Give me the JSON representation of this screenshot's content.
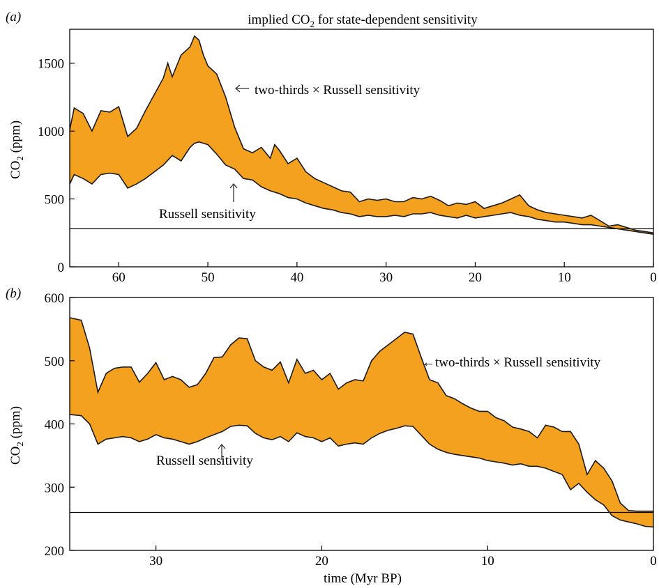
{
  "chart_data": [
    {
      "panel_label": "(a)",
      "type": "area",
      "title": "implied CO2 for state-dependent sensitivity",
      "title_main": "implied CO",
      "title_sub": "2",
      "title_tail": " for state-dependent sensitivity",
      "xlabel": "",
      "ylabel": "CO2 (ppm)",
      "ylabel_main": "CO",
      "ylabel_sub": "2",
      "ylabel_tail": " (ppm)",
      "xlim": [
        65.5,
        0
      ],
      "ylim": [
        0,
        1750
      ],
      "xticks": [
        60,
        50,
        40,
        30,
        20,
        10,
        0
      ],
      "yticks": [
        0,
        500,
        1000,
        1500
      ],
      "reference_line": 280,
      "colors": {
        "band": "#f4a11f",
        "line": "#1a1a1a"
      },
      "annotations": [
        {
          "text": "two-thirds × Russell sensitivity",
          "arrow": "left",
          "points_to": "upper"
        },
        {
          "text": "Russell sensitivity",
          "arrow": "up",
          "points_to": "lower"
        }
      ],
      "series": [
        {
          "name": "two-thirds × Russell sensitivity",
          "x": [
            65.5,
            65,
            64,
            63,
            62,
            61,
            60,
            59,
            58,
            57,
            56,
            55,
            54.5,
            54,
            53,
            52,
            51.5,
            51,
            50.5,
            50,
            49,
            48,
            47,
            46,
            45,
            44,
            43,
            42.5,
            42,
            41,
            40,
            39,
            38,
            37,
            36,
            35,
            34,
            33,
            32,
            31,
            30,
            29,
            28,
            27,
            26,
            25,
            24,
            23,
            22,
            21,
            20,
            19,
            18,
            17,
            16,
            15,
            14,
            13,
            12,
            11,
            10,
            9,
            8,
            7,
            6,
            5,
            4,
            3,
            2,
            1,
            0
          ],
          "values": [
            1010,
            1170,
            1130,
            1000,
            1150,
            1140,
            1180,
            960,
            1020,
            1150,
            1270,
            1390,
            1500,
            1400,
            1560,
            1620,
            1700,
            1670,
            1560,
            1480,
            1420,
            1250,
            1030,
            870,
            840,
            880,
            800,
            900,
            860,
            760,
            800,
            700,
            650,
            620,
            590,
            560,
            550,
            480,
            500,
            490,
            500,
            480,
            480,
            510,
            500,
            520,
            490,
            450,
            470,
            460,
            480,
            430,
            450,
            470,
            500,
            530,
            450,
            420,
            400,
            390,
            380,
            370,
            360,
            380,
            340,
            300,
            310,
            290,
            270,
            260,
            250
          ]
        },
        {
          "name": "Russell sensitivity",
          "x": [
            65.5,
            65,
            64,
            63,
            62,
            61,
            60,
            59,
            58,
            57,
            56,
            55,
            54,
            53,
            52,
            51.5,
            51,
            50,
            49,
            48,
            47,
            46,
            45,
            44,
            43,
            42,
            41,
            40,
            39,
            38,
            37,
            36,
            35,
            34,
            33,
            32,
            31,
            30,
            29,
            28,
            27,
            26,
            25,
            24,
            23,
            22,
            21,
            20,
            19,
            18,
            17,
            16,
            15,
            14,
            13,
            12,
            11,
            10,
            9,
            8,
            7,
            6,
            5,
            4,
            3,
            2,
            1,
            0
          ],
          "values": [
            610,
            680,
            650,
            610,
            680,
            690,
            680,
            580,
            610,
            650,
            700,
            750,
            820,
            780,
            880,
            910,
            920,
            900,
            830,
            750,
            720,
            650,
            640,
            590,
            560,
            540,
            510,
            500,
            470,
            450,
            430,
            420,
            400,
            390,
            370,
            380,
            370,
            370,
            380,
            370,
            390,
            390,
            400,
            380,
            370,
            360,
            380,
            360,
            370,
            380,
            390,
            400,
            380,
            370,
            350,
            340,
            330,
            330,
            320,
            310,
            310,
            300,
            290,
            280,
            270,
            260,
            250,
            240
          ]
        }
      ]
    },
    {
      "panel_label": "(b)",
      "type": "area",
      "title": "",
      "xlabel": "time (Myr BP)",
      "ylabel": "CO2 (ppm)",
      "ylabel_main": "CO",
      "ylabel_sub": "2",
      "ylabel_tail": " (ppm)",
      "xlim": [
        35.2,
        0
      ],
      "ylim": [
        200,
        600
      ],
      "xticks": [
        30,
        20,
        10,
        0
      ],
      "yticks": [
        200,
        300,
        400,
        500,
        600
      ],
      "reference_line": 260,
      "colors": {
        "band": "#f4a11f",
        "line": "#1a1a1a"
      },
      "annotations": [
        {
          "text": "two-thirds × Russell sensitivity",
          "arrow": "left",
          "points_to": "upper"
        },
        {
          "text": "Russell sensitivity",
          "arrow": "up",
          "points_to": "lower"
        }
      ],
      "series": [
        {
          "name": "two-thirds × Russell sensitivity",
          "x": [
            35.2,
            34.5,
            34,
            33.5,
            33,
            32.5,
            32,
            31.5,
            31,
            30.5,
            30,
            29.5,
            29,
            28.5,
            28,
            27.5,
            27,
            26.5,
            26,
            25.5,
            25,
            24.5,
            24,
            23.5,
            23,
            22.5,
            22,
            21.5,
            21,
            20.5,
            20,
            19.5,
            19,
            18.5,
            18,
            17.5,
            17,
            16.5,
            16,
            15.5,
            15,
            14.5,
            14,
            13.5,
            13,
            12.5,
            12,
            11.5,
            11,
            10.5,
            10,
            9.5,
            9,
            8.5,
            8,
            7.5,
            7,
            6.5,
            6,
            5.5,
            5,
            4.5,
            4,
            3.5,
            3,
            2.5,
            2,
            1.5,
            1,
            0.5,
            0
          ],
          "values": [
            568,
            564,
            520,
            450,
            480,
            488,
            490,
            490,
            466,
            480,
            497,
            470,
            475,
            470,
            458,
            462,
            480,
            505,
            506,
            525,
            536,
            535,
            500,
            490,
            485,
            498,
            465,
            502,
            480,
            485,
            470,
            480,
            455,
            465,
            470,
            468,
            500,
            515,
            525,
            535,
            545,
            542,
            505,
            470,
            465,
            445,
            440,
            432,
            425,
            420,
            420,
            410,
            405,
            395,
            392,
            388,
            378,
            398,
            395,
            388,
            388,
            368,
            320,
            342,
            330,
            310,
            275,
            263,
            262,
            262,
            262
          ]
        },
        {
          "name": "Russell sensitivity",
          "x": [
            35.2,
            34.5,
            34,
            33.5,
            33,
            32.5,
            32,
            31.5,
            31,
            30.5,
            30,
            29.5,
            29,
            28.5,
            28,
            27.5,
            27,
            26.5,
            26,
            25.5,
            25,
            24.5,
            24,
            23.5,
            23,
            22.5,
            22,
            21.5,
            21,
            20.5,
            20,
            19.5,
            19,
            18.5,
            18,
            17.5,
            17,
            16.5,
            16,
            15.5,
            15,
            14.5,
            14,
            13.5,
            13,
            12.5,
            12,
            11.5,
            11,
            10.5,
            10,
            9.5,
            9,
            8.5,
            8,
            7.5,
            7,
            6.5,
            6,
            5.5,
            5,
            4.5,
            4,
            3.5,
            3,
            2.5,
            2,
            1.5,
            1,
            0.5,
            0
          ],
          "values": [
            415,
            413,
            400,
            368,
            376,
            378,
            380,
            378,
            372,
            376,
            383,
            378,
            376,
            372,
            368,
            372,
            378,
            383,
            388,
            396,
            398,
            397,
            385,
            378,
            375,
            380,
            372,
            386,
            380,
            378,
            372,
            378,
            365,
            368,
            370,
            368,
            378,
            385,
            390,
            393,
            397,
            396,
            382,
            368,
            360,
            355,
            352,
            350,
            348,
            346,
            342,
            340,
            338,
            335,
            337,
            333,
            333,
            330,
            325,
            320,
            296,
            306,
            292,
            280,
            272,
            255,
            248,
            245,
            242,
            238,
            237
          ]
        }
      ]
    }
  ]
}
